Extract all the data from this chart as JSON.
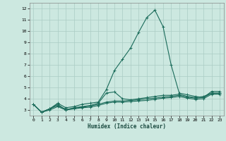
{
  "xlabel": "Humidex (Indice chaleur)",
  "bg_color": "#cce8e0",
  "grid_color": "#aaccc4",
  "line_color": "#1a6b5a",
  "xlim": [
    -0.5,
    23.5
  ],
  "ylim": [
    2.5,
    12.5
  ],
  "xticks": [
    0,
    1,
    2,
    3,
    4,
    5,
    6,
    7,
    8,
    9,
    10,
    11,
    12,
    13,
    14,
    15,
    16,
    17,
    18,
    19,
    20,
    21,
    22,
    23
  ],
  "yticks": [
    3,
    4,
    5,
    6,
    7,
    8,
    9,
    10,
    11,
    12
  ],
  "series": [
    {
      "x": [
        0,
        1,
        2,
        3,
        4,
        5,
        6,
        7,
        8,
        9,
        10,
        11,
        12,
        13,
        14,
        15,
        16,
        17,
        18,
        19,
        20,
        21,
        22,
        23
      ],
      "y": [
        3.5,
        2.8,
        3.1,
        3.6,
        3.2,
        3.3,
        3.5,
        3.6,
        3.7,
        4.8,
        6.5,
        7.5,
        8.5,
        9.9,
        11.2,
        11.85,
        10.4,
        7.0,
        4.5,
        4.35,
        4.2,
        4.1,
        4.65,
        4.65
      ]
    },
    {
      "x": [
        0,
        1,
        2,
        3,
        4,
        5,
        6,
        7,
        8,
        9,
        10,
        11,
        12,
        13,
        14,
        15,
        16,
        17,
        18,
        19,
        20,
        21,
        22,
        23
      ],
      "y": [
        3.5,
        2.8,
        3.1,
        3.5,
        3.0,
        3.2,
        3.3,
        3.4,
        3.6,
        4.5,
        4.6,
        4.0,
        3.9,
        4.0,
        4.1,
        4.2,
        4.3,
        4.3,
        4.4,
        4.2,
        4.1,
        4.2,
        4.5,
        4.5
      ]
    },
    {
      "x": [
        0,
        1,
        2,
        3,
        4,
        5,
        6,
        7,
        8,
        9,
        10,
        11,
        12,
        13,
        14,
        15,
        16,
        17,
        18,
        19,
        20,
        21,
        22,
        23
      ],
      "y": [
        3.5,
        2.8,
        3.1,
        3.4,
        3.05,
        3.15,
        3.25,
        3.35,
        3.5,
        3.7,
        3.8,
        3.8,
        3.85,
        3.9,
        4.0,
        4.05,
        4.15,
        4.2,
        4.3,
        4.15,
        4.05,
        4.1,
        4.5,
        4.5
      ]
    },
    {
      "x": [
        0,
        1,
        2,
        3,
        4,
        5,
        6,
        7,
        8,
        9,
        10,
        11,
        12,
        13,
        14,
        15,
        16,
        17,
        18,
        19,
        20,
        21,
        22,
        23
      ],
      "y": [
        3.5,
        2.8,
        3.0,
        3.3,
        3.0,
        3.1,
        3.2,
        3.25,
        3.4,
        3.6,
        3.7,
        3.7,
        3.75,
        3.8,
        3.85,
        3.95,
        4.05,
        4.1,
        4.2,
        4.05,
        3.95,
        4.0,
        4.4,
        4.4
      ]
    }
  ]
}
